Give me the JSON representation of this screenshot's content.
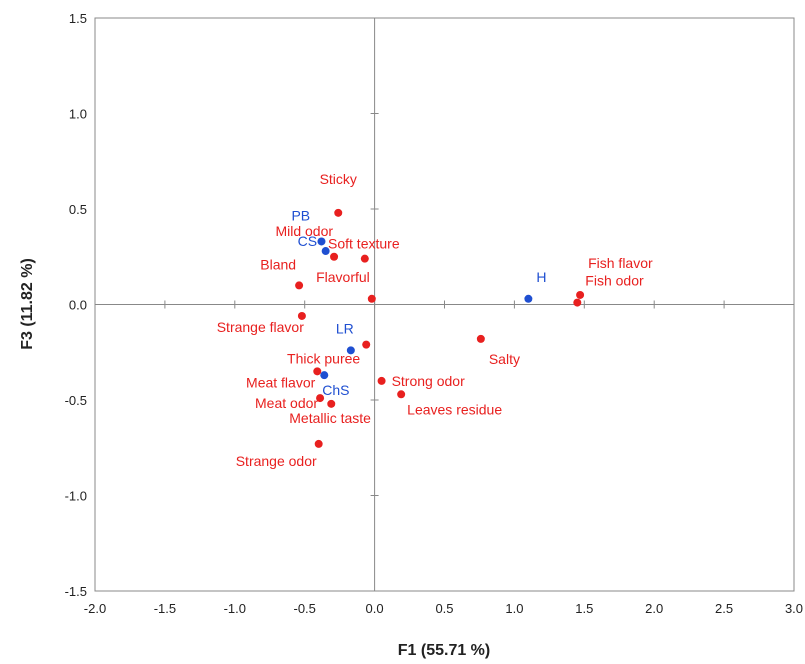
{
  "chart_data": {
    "type": "scatter",
    "xlabel": "F1 (55.71 %)",
    "ylabel": "F3 (11.82 %)",
    "xlim": [
      -2.0,
      3.0
    ],
    "ylim": [
      -1.5,
      1.5
    ],
    "x_ticks": [
      "-2.0",
      "-1.5",
      "-1.0",
      "-0.5",
      "0.0",
      "0.5",
      "1.0",
      "1.5",
      "2.0",
      "2.5",
      "3.0"
    ],
    "y_ticks": [
      "1.5",
      "1.0",
      "0.5",
      "0.0",
      "-0.5",
      "-1.0",
      "-1.5"
    ],
    "grid": false,
    "colors": {
      "variables": "#e8201f",
      "observations": "#1f4fd1"
    },
    "series": [
      {
        "kind": "variables",
        "points": [
          {
            "label": "Sticky",
            "x": -0.26,
            "y": 0.48
          },
          {
            "label": "Soft texture",
            "x": -0.07,
            "y": 0.24
          },
          {
            "label": "Mild odor",
            "x": -0.29,
            "y": 0.25
          },
          {
            "label": "Bland",
            "x": -0.54,
            "y": 0.1
          },
          {
            "label": "Flavorful",
            "x": -0.02,
            "y": 0.03
          },
          {
            "label": "Fish flavor",
            "x": 1.47,
            "y": 0.05
          },
          {
            "label": "Fish odor",
            "x": 1.45,
            "y": 0.01
          },
          {
            "label": "Strange flavor",
            "x": -0.52,
            "y": -0.06
          },
          {
            "label": "Thick puree",
            "x": -0.06,
            "y": -0.21
          },
          {
            "label": "Salty",
            "x": 0.76,
            "y": -0.18
          },
          {
            "label": "Meat flavor",
            "x": -0.41,
            "y": -0.35
          },
          {
            "label": "Strong odor",
            "x": 0.05,
            "y": -0.4
          },
          {
            "label": "Meat odor",
            "x": -0.39,
            "y": -0.49
          },
          {
            "label": "Leaves residue",
            "x": 0.19,
            "y": -0.47
          },
          {
            "label": "Metallic taste",
            "x": -0.31,
            "y": -0.52
          },
          {
            "label": "Strange odor",
            "x": -0.4,
            "y": -0.73
          }
        ]
      },
      {
        "kind": "observations",
        "points": [
          {
            "label": "PB",
            "x": -0.38,
            "y": 0.33
          },
          {
            "label": "CS",
            "x": -0.35,
            "y": 0.28
          },
          {
            "label": "H",
            "x": 1.1,
            "y": 0.03
          },
          {
            "label": "LR",
            "x": -0.17,
            "y": -0.24
          },
          {
            "label": "ChS",
            "x": -0.36,
            "y": -0.37
          }
        ]
      }
    ]
  }
}
